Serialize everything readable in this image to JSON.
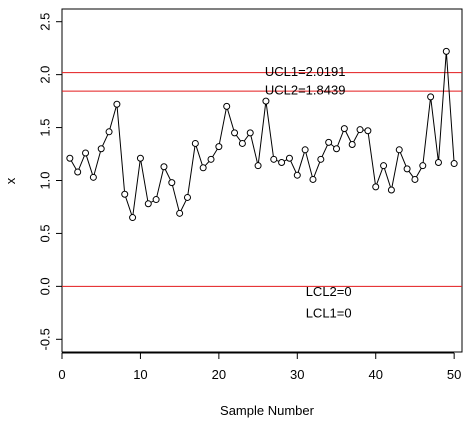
{
  "chart_data": {
    "type": "line",
    "title": "",
    "xlabel": "Sample Number",
    "ylabel": "x",
    "xlim": [
      0,
      51
    ],
    "ylim": [
      -0.62,
      2.62
    ],
    "x_ticks": [
      "0",
      "10",
      "20",
      "30",
      "40",
      "50"
    ],
    "y_ticks": [
      "-0.5",
      "0.0",
      "0.5",
      "1.0",
      "1.5",
      "2.0",
      "2.5"
    ],
    "grid": false,
    "legend": "none",
    "series": [
      {
        "x": [
          1,
          2,
          3,
          4,
          5,
          6,
          7,
          8,
          9,
          10,
          11,
          12,
          13,
          14,
          15,
          16,
          17,
          18,
          19,
          20,
          21,
          22,
          23,
          24,
          25,
          26,
          27,
          28,
          29,
          30,
          31,
          32,
          33,
          34,
          35,
          36,
          37,
          38,
          39,
          40,
          41,
          42,
          43,
          44,
          45,
          46,
          47,
          48,
          49,
          50
        ],
        "values": [
          1.21,
          1.08,
          1.26,
          1.03,
          1.3,
          1.46,
          1.72,
          0.87,
          0.65,
          1.21,
          0.78,
          0.82,
          1.13,
          0.98,
          0.69,
          0.84,
          1.35,
          1.12,
          1.2,
          1.32,
          1.7,
          1.45,
          1.35,
          1.45,
          1.14,
          1.75,
          1.2,
          1.17,
          1.21,
          1.05,
          1.29,
          1.01,
          1.2,
          1.36,
          1.3,
          1.49,
          1.34,
          1.48,
          1.47,
          0.94,
          1.14,
          0.91,
          1.29,
          1.11,
          1.01,
          1.14,
          1.79,
          1.17,
          2.22,
          1.16
        ],
        "color": "#000000"
      }
    ],
    "control_lines": [
      {
        "value": 2.0191,
        "label": "UCL1=2.0191",
        "color": "#e31a1c"
      },
      {
        "value": 1.8439,
        "label": "UCL2=1.8439",
        "color": "#e31a1c"
      },
      {
        "value": 0,
        "label": "LCL2=0",
        "color": "#e31a1c"
      }
    ],
    "annotations": [
      {
        "text": "UCL1=2.0191",
        "x": 31.0,
        "y": 2.0191
      },
      {
        "text": "UCL2=1.8439",
        "x": 31.0,
        "y": 1.8439
      },
      {
        "text": "LCL2=0",
        "x": 34.0,
        "y": -0.06
      },
      {
        "text": "LCL1=0",
        "x": 34.0,
        "y": -0.26
      }
    ]
  }
}
